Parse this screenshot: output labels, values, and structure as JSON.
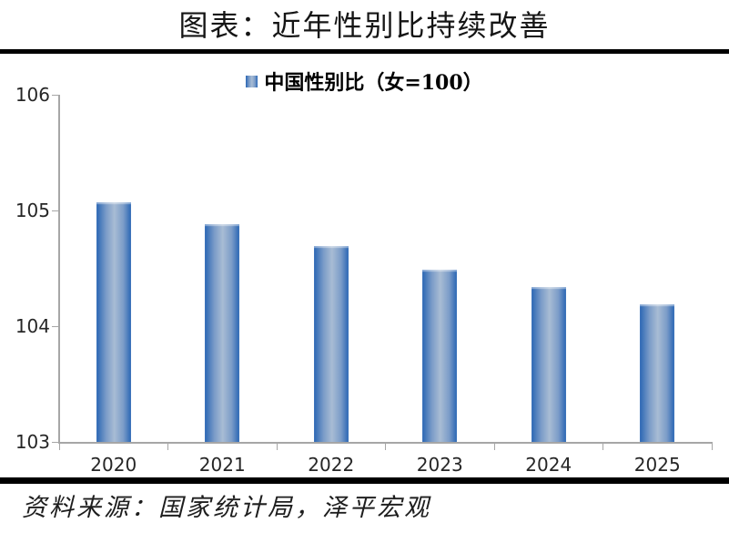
{
  "page": {
    "title": "图表：近年性别比持续改善",
    "source": "资料来源：国家统计局，泽平宏观"
  },
  "chart_data": {
    "type": "bar",
    "title": "中国性别比（女=100）",
    "legend": [
      {
        "label": "中国性别比（女=100）"
      }
    ],
    "legend_position": "top-center",
    "categories": [
      "2020",
      "2021",
      "2022",
      "2023",
      "2024",
      "2025"
    ],
    "values": [
      105.07,
      104.88,
      104.69,
      104.49,
      104.34,
      104.19
    ],
    "xlabel": "",
    "ylabel": "",
    "ylim": [
      103,
      106
    ],
    "yticks": [
      103,
      104,
      105,
      106
    ],
    "grid": false,
    "colors": {
      "bar_edge": "#2a66b4",
      "bar_mid": "#7b9cc8",
      "bar_center": "#a8bcd4",
      "axis": "#a6a6a6",
      "tick_label": "#262626",
      "rule": "#000000"
    }
  }
}
